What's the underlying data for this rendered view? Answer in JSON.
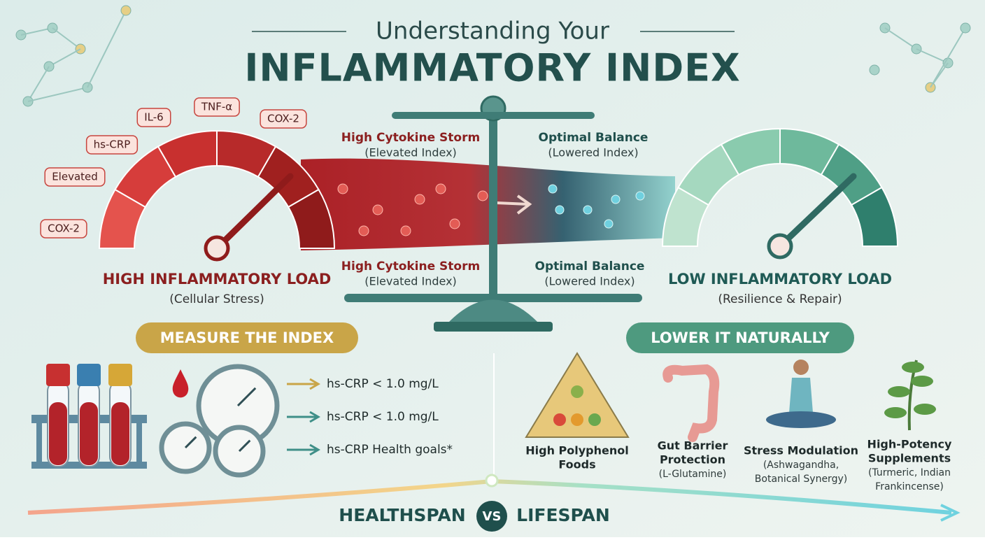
{
  "header": {
    "title_top": "Understanding Your",
    "title_main": "INFLAMMATORY INDEX"
  },
  "high_gauge": {
    "labels": [
      "COX-2",
      "Elevated",
      "hs-CRP",
      "IL-6",
      "TNF-α",
      "COX-2"
    ],
    "title": "HIGH INFLAMMATORY LOAD",
    "subtitle": "(Cellular Stress)"
  },
  "low_gauge": {
    "title": "LOW INFLAMMATORY LOAD",
    "subtitle": "(Resilience & Repair)"
  },
  "balance": {
    "upper_left": {
      "title": "High Cytokine Storm",
      "subtitle": "(Elevated Index)"
    },
    "upper_right": {
      "title": "Optimal Balance",
      "subtitle": "(Lowered Index)"
    },
    "lower_left": {
      "title": "High Cytokine Storm",
      "subtitle": "(Elevated Index)"
    },
    "lower_right": {
      "title": "Optimal Balance",
      "subtitle": "(Lowered Index)"
    }
  },
  "measure": {
    "heading": "MEASURE THE INDEX",
    "items": [
      "hs-CRP < 1.0 mg/L",
      "hs-CRP  < 1.0 mg/L",
      "hs-CRP Health goals*"
    ]
  },
  "lower": {
    "heading": "LOWER IT NATURALLY",
    "items": [
      {
        "lines": [
          "High Polyphenol",
          "Foods"
        ]
      },
      {
        "lines": [
          "Gut Barrier",
          "Protection"
        ],
        "detail": [
          "(L-Glutamine)"
        ]
      },
      {
        "lines": [
          "Stress Modulation"
        ],
        "detail": [
          "(Ashwagandha,",
          "Botanical Synergy)"
        ]
      },
      {
        "lines": [
          "High-Potency",
          "Supplements"
        ],
        "detail": [
          "(Turmeric, Indian",
          "Frankincense)"
        ]
      }
    ]
  },
  "footer": {
    "left": "HEALTHSPAN",
    "vs": "VS",
    "right": "LIFESPAN"
  }
}
